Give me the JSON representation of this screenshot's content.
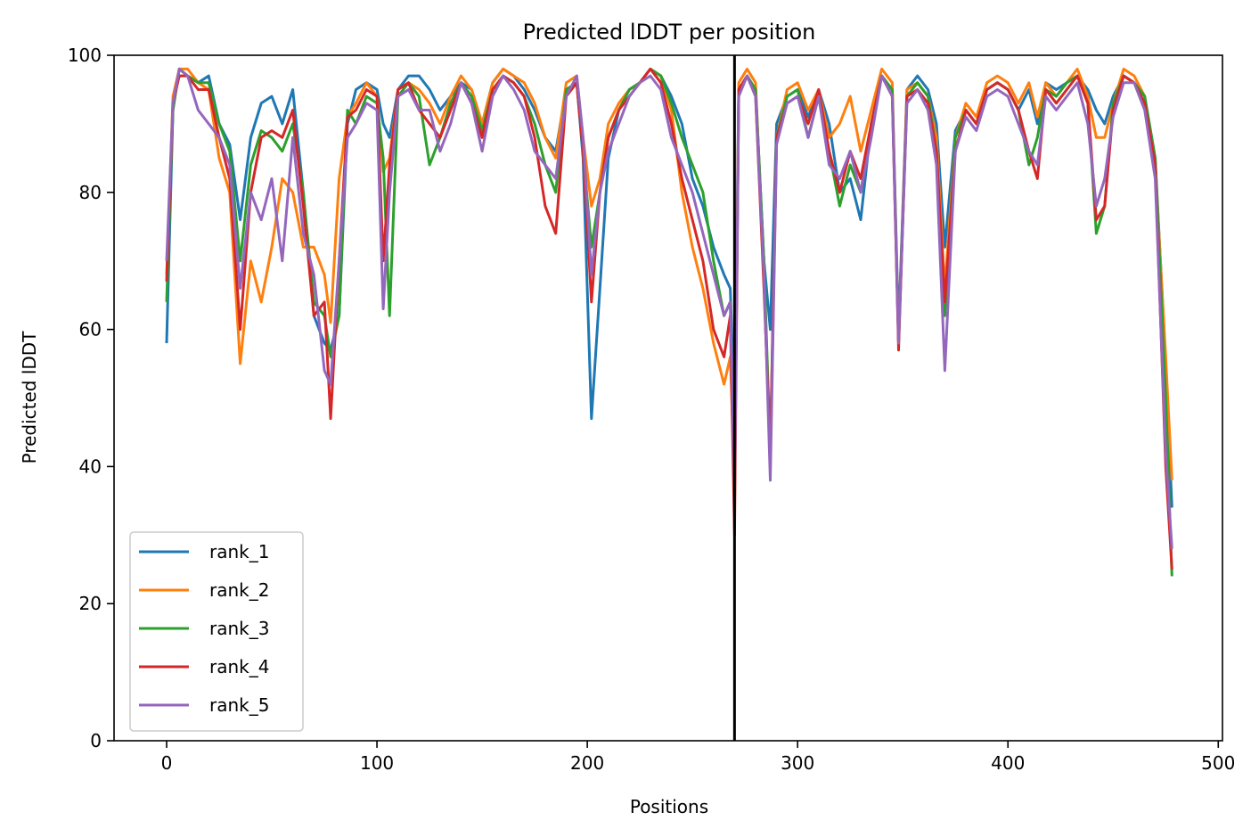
{
  "chart_data": {
    "type": "line",
    "title": "Predicted lDDT per position",
    "xlabel": "Positions",
    "ylabel": "Predicted lDDT",
    "xlim": [
      -25,
      502
    ],
    "ylim": [
      0,
      100
    ],
    "xticks": [
      0,
      100,
      200,
      300,
      400,
      500
    ],
    "yticks": [
      0,
      20,
      40,
      60,
      80,
      100
    ],
    "grid": false,
    "legend_position": "lower-left",
    "vline_x": 270,
    "series": [
      {
        "name": "rank_1",
        "color": "#1f77b4",
        "x": [
          0,
          3,
          6,
          10,
          15,
          20,
          25,
          30,
          35,
          40,
          45,
          50,
          55,
          60,
          65,
          70,
          75,
          78,
          82,
          86,
          90,
          95,
          100,
          103,
          106,
          110,
          115,
          120,
          125,
          130,
          135,
          140,
          145,
          150,
          155,
          160,
          165,
          170,
          175,
          180,
          185,
          190,
          195,
          198,
          202,
          206,
          210,
          215,
          220,
          225,
          230,
          235,
          240,
          245,
          250,
          255,
          260,
          265,
          268,
          270,
          272,
          276,
          280,
          284,
          287,
          290,
          295,
          300,
          305,
          310,
          315,
          320,
          325,
          330,
          335,
          340,
          345,
          348,
          352,
          357,
          362,
          366,
          370,
          375,
          380,
          385,
          390,
          395,
          400,
          405,
          410,
          414,
          418,
          423,
          428,
          433,
          438,
          442,
          446,
          450,
          455,
          460,
          465,
          470,
          475,
          478
        ],
        "y": [
          58,
          92,
          98,
          97,
          96,
          97,
          90,
          87,
          76,
          88,
          93,
          94,
          90,
          95,
          80,
          62,
          58,
          57,
          62,
          90,
          95,
          96,
          95,
          90,
          88,
          95,
          97,
          97,
          95,
          92,
          94,
          96,
          95,
          90,
          96,
          98,
          97,
          95,
          92,
          88,
          86,
          95,
          96,
          85,
          47,
          66,
          85,
          92,
          95,
          96,
          98,
          97,
          94,
          90,
          82,
          78,
          72,
          68,
          66,
          48,
          95,
          97,
          95,
          70,
          60,
          90,
          94,
          95,
          91,
          95,
          90,
          80,
          82,
          76,
          90,
          97,
          95,
          60,
          95,
          97,
          95,
          90,
          72,
          89,
          92,
          90,
          95,
          96,
          95,
          92,
          95,
          90,
          96,
          95,
          96,
          97,
          95,
          92,
          90,
          94,
          97,
          96,
          94,
          85,
          55,
          34
        ]
      },
      {
        "name": "rank_2",
        "color": "#ff7f0e",
        "x": [
          0,
          3,
          6,
          10,
          15,
          20,
          25,
          30,
          35,
          40,
          45,
          50,
          55,
          60,
          65,
          70,
          75,
          78,
          82,
          86,
          90,
          95,
          100,
          103,
          106,
          110,
          115,
          120,
          125,
          130,
          135,
          140,
          145,
          150,
          155,
          160,
          165,
          170,
          175,
          180,
          185,
          190,
          195,
          198,
          202,
          206,
          210,
          215,
          220,
          225,
          230,
          235,
          240,
          245,
          250,
          255,
          260,
          265,
          268,
          270,
          272,
          276,
          280,
          284,
          287,
          290,
          295,
          300,
          305,
          310,
          315,
          320,
          325,
          330,
          335,
          340,
          345,
          348,
          352,
          357,
          362,
          366,
          370,
          375,
          380,
          385,
          390,
          395,
          400,
          405,
          410,
          414,
          418,
          423,
          428,
          433,
          438,
          442,
          446,
          450,
          455,
          460,
          465,
          470,
          475,
          478
        ],
        "y": [
          68,
          94,
          98,
          98,
          96,
          95,
          85,
          80,
          55,
          70,
          64,
          72,
          82,
          80,
          72,
          72,
          68,
          61,
          82,
          91,
          93,
          96,
          94,
          83,
          85,
          95,
          96,
          95,
          93,
          90,
          94,
          97,
          95,
          90,
          96,
          98,
          97,
          96,
          93,
          88,
          85,
          96,
          97,
          88,
          78,
          82,
          90,
          93,
          95,
          96,
          98,
          97,
          92,
          80,
          72,
          66,
          58,
          52,
          56,
          38,
          96,
          98,
          96,
          68,
          40,
          88,
          95,
          96,
          92,
          95,
          88,
          90,
          94,
          86,
          92,
          98,
          96,
          58,
          95,
          96,
          94,
          88,
          66,
          88,
          93,
          91,
          96,
          97,
          96,
          93,
          96,
          91,
          96,
          94,
          96,
          98,
          94,
          88,
          88,
          93,
          98,
          97,
          94,
          84,
          56,
          38
        ]
      },
      {
        "name": "rank_3",
        "color": "#2ca02c",
        "x": [
          0,
          3,
          6,
          10,
          15,
          20,
          25,
          30,
          35,
          40,
          45,
          50,
          55,
          60,
          65,
          70,
          75,
          78,
          82,
          86,
          90,
          95,
          100,
          103,
          106,
          110,
          115,
          120,
          125,
          130,
          135,
          140,
          145,
          150,
          155,
          160,
          165,
          170,
          175,
          180,
          185,
          190,
          195,
          198,
          202,
          206,
          210,
          215,
          220,
          225,
          230,
          235,
          240,
          245,
          250,
          255,
          260,
          265,
          268,
          270,
          272,
          276,
          280,
          284,
          287,
          290,
          295,
          300,
          305,
          310,
          315,
          320,
          325,
          330,
          335,
          340,
          345,
          348,
          352,
          357,
          362,
          366,
          370,
          375,
          380,
          385,
          390,
          395,
          400,
          405,
          410,
          414,
          418,
          423,
          428,
          433,
          438,
          442,
          446,
          450,
          455,
          460,
          465,
          470,
          475,
          478
        ],
        "y": [
          64,
          92,
          98,
          97,
          96,
          96,
          90,
          86,
          70,
          84,
          89,
          88,
          86,
          90,
          80,
          64,
          62,
          56,
          62,
          92,
          90,
          94,
          93,
          85,
          62,
          94,
          96,
          94,
          84,
          88,
          93,
          96,
          94,
          89,
          95,
          97,
          96,
          94,
          90,
          84,
          80,
          95,
          96,
          86,
          72,
          80,
          88,
          92,
          95,
          96,
          98,
          97,
          93,
          88,
          84,
          80,
          70,
          62,
          64,
          34,
          95,
          97,
          95,
          70,
          42,
          88,
          94,
          95,
          88,
          94,
          86,
          78,
          84,
          80,
          90,
          97,
          95,
          58,
          94,
          96,
          94,
          86,
          62,
          88,
          92,
          90,
          95,
          96,
          95,
          92,
          84,
          88,
          95,
          94,
          96,
          97,
          93,
          74,
          78,
          93,
          97,
          96,
          94,
          85,
          50,
          24
        ]
      },
      {
        "name": "rank_4",
        "color": "#d62728",
        "x": [
          0,
          3,
          6,
          10,
          15,
          20,
          25,
          30,
          35,
          40,
          45,
          50,
          55,
          60,
          65,
          70,
          75,
          78,
          82,
          86,
          90,
          95,
          100,
          103,
          106,
          110,
          115,
          120,
          125,
          130,
          135,
          140,
          145,
          150,
          155,
          160,
          165,
          170,
          175,
          180,
          185,
          190,
          195,
          198,
          202,
          206,
          210,
          215,
          220,
          225,
          230,
          235,
          240,
          245,
          250,
          255,
          260,
          265,
          268,
          270,
          272,
          276,
          280,
          284,
          287,
          290,
          295,
          300,
          305,
          310,
          315,
          320,
          325,
          330,
          335,
          340,
          345,
          348,
          352,
          357,
          362,
          366,
          370,
          375,
          380,
          385,
          390,
          395,
          400,
          405,
          410,
          414,
          418,
          423,
          428,
          433,
          438,
          442,
          446,
          450,
          455,
          460,
          465,
          470,
          475,
          478
        ],
        "y": [
          67,
          93,
          97,
          97,
          95,
          95,
          88,
          82,
          60,
          80,
          88,
          89,
          88,
          92,
          78,
          62,
          64,
          47,
          70,
          91,
          92,
          95,
          94,
          70,
          84,
          95,
          96,
          92,
          90,
          88,
          92,
          96,
          93,
          88,
          95,
          97,
          96,
          94,
          88,
          78,
          74,
          94,
          96,
          86,
          64,
          80,
          88,
          92,
          94,
          96,
          98,
          96,
          90,
          82,
          76,
          70,
          60,
          56,
          62,
          30,
          95,
          97,
          94,
          66,
          42,
          88,
          93,
          94,
          90,
          95,
          86,
          80,
          86,
          82,
          90,
          97,
          94,
          57,
          94,
          95,
          93,
          86,
          64,
          86,
          92,
          90,
          95,
          96,
          95,
          92,
          86,
          82,
          95,
          93,
          95,
          97,
          93,
          76,
          78,
          92,
          97,
          96,
          93,
          84,
          40,
          25
        ]
      },
      {
        "name": "rank_5",
        "color": "#9467bd",
        "x": [
          0,
          3,
          6,
          10,
          15,
          20,
          25,
          30,
          35,
          40,
          45,
          50,
          55,
          60,
          65,
          70,
          75,
          78,
          82,
          86,
          90,
          95,
          100,
          103,
          106,
          110,
          115,
          120,
          125,
          130,
          135,
          140,
          145,
          150,
          155,
          160,
          165,
          170,
          175,
          180,
          185,
          190,
          195,
          198,
          202,
          206,
          210,
          215,
          220,
          225,
          230,
          235,
          240,
          245,
          250,
          255,
          260,
          265,
          268,
          270,
          272,
          276,
          280,
          284,
          287,
          290,
          295,
          300,
          305,
          310,
          315,
          320,
          325,
          330,
          335,
          340,
          345,
          348,
          352,
          357,
          362,
          366,
          370,
          375,
          380,
          385,
          390,
          395,
          400,
          405,
          410,
          414,
          418,
          423,
          428,
          433,
          438,
          442,
          446,
          450,
          455,
          460,
          465,
          470,
          475,
          478
        ],
        "y": [
          70,
          93,
          98,
          97,
          92,
          90,
          88,
          84,
          66,
          80,
          76,
          82,
          70,
          88,
          74,
          68,
          54,
          52,
          70,
          88,
          90,
          93,
          92,
          63,
          80,
          94,
          95,
          92,
          92,
          86,
          90,
          96,
          93,
          86,
          94,
          97,
          95,
          92,
          86,
          84,
          82,
          94,
          97,
          88,
          68,
          80,
          86,
          90,
          94,
          96,
          97,
          95,
          88,
          84,
          80,
          74,
          68,
          62,
          64,
          37,
          94,
          97,
          94,
          68,
          38,
          87,
          93,
          94,
          88,
          94,
          84,
          82,
          86,
          80,
          88,
          97,
          94,
          58,
          93,
          95,
          92,
          84,
          54,
          86,
          91,
          89,
          94,
          95,
          94,
          90,
          86,
          84,
          94,
          92,
          94,
          96,
          90,
          78,
          82,
          91,
          96,
          96,
          92,
          82,
          42,
          28
        ]
      }
    ]
  }
}
